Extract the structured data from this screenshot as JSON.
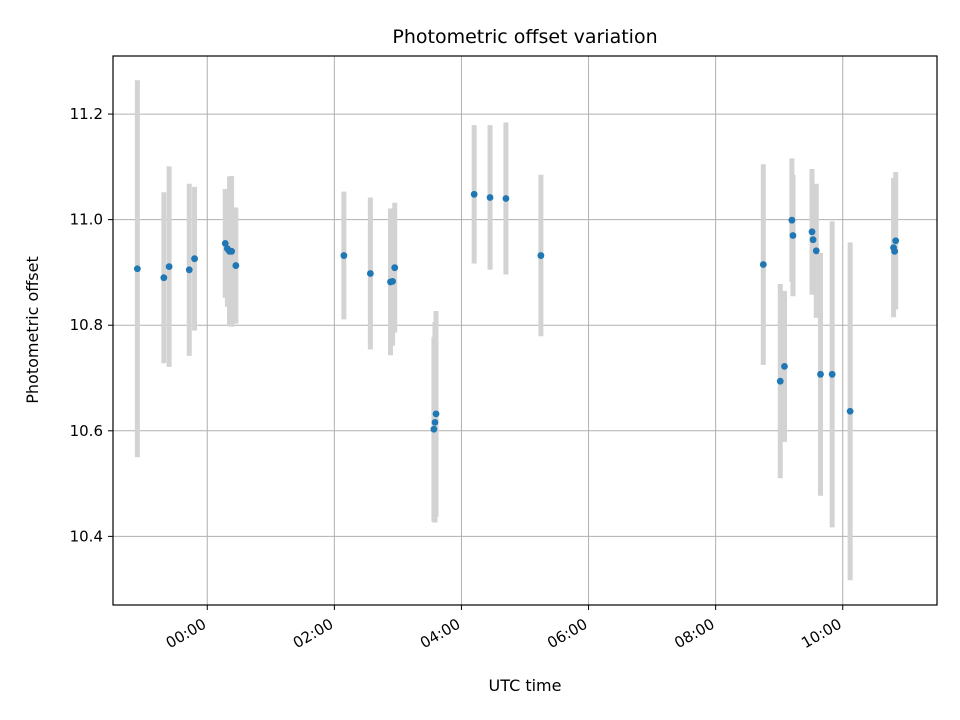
{
  "chart_data": {
    "type": "scatter",
    "title": "Photometric offset variation",
    "xlabel": "UTC time",
    "ylabel": "Photometric offset",
    "x_ticks": [
      "00:00",
      "02:00",
      "04:00",
      "06:00",
      "08:00",
      "10:00"
    ],
    "y_ticks": [
      "10.4",
      "10.6",
      "10.8",
      "11.0",
      "11.2"
    ],
    "xlim": [
      "-01:29",
      "11:29"
    ],
    "ylim": [
      10.27,
      11.31
    ],
    "grid": true,
    "legend": "none",
    "colors": {
      "point": "#1f77b4",
      "errorbar": "#d3d3d3",
      "grid": "#b0b0b0"
    },
    "series": [
      {
        "points": [
          {
            "x": "-01:06",
            "y": 10.907,
            "err": 0.357
          },
          {
            "x": "-00:41",
            "y": 10.89,
            "err": 0.162
          },
          {
            "x": "-00:36",
            "y": 10.911,
            "err": 0.19
          },
          {
            "x": "-00:17",
            "y": 10.905,
            "err": 0.163
          },
          {
            "x": "-00:12",
            "y": 10.926,
            "err": 0.136
          },
          {
            "x": "00:17",
            "y": 10.955,
            "err": 0.103
          },
          {
            "x": "00:19",
            "y": 10.945,
            "err": 0.11
          },
          {
            "x": "00:21",
            "y": 10.94,
            "err": 0.142
          },
          {
            "x": "00:23",
            "y": 10.94,
            "err": 0.143
          },
          {
            "x": "00:27",
            "y": 10.913,
            "err": 0.11
          },
          {
            "x": "02:09",
            "y": 10.932,
            "err": 0.121
          },
          {
            "x": "02:34",
            "y": 10.898,
            "err": 0.144
          },
          {
            "x": "02:53",
            "y": 10.882,
            "err": 0.139
          },
          {
            "x": "02:55",
            "y": 10.883,
            "err": 0.122
          },
          {
            "x": "02:57",
            "y": 10.909,
            "err": 0.123
          },
          {
            "x": "03:34",
            "y": 10.603,
            "err": 0.175
          },
          {
            "x": "03:35",
            "y": 10.616,
            "err": 0.19
          },
          {
            "x": "03:36",
            "y": 10.632,
            "err": 0.195
          },
          {
            "x": "04:12",
            "y": 11.048,
            "err": 0.131
          },
          {
            "x": "04:27",
            "y": 11.042,
            "err": 0.137
          },
          {
            "x": "04:42",
            "y": 11.04,
            "err": 0.144
          },
          {
            "x": "05:15",
            "y": 10.932,
            "err": 0.153
          },
          {
            "x": "08:45",
            "y": 10.915,
            "err": 0.19
          },
          {
            "x": "09:01",
            "y": 10.694,
            "err": 0.184
          },
          {
            "x": "09:05",
            "y": 10.722,
            "err": 0.143
          },
          {
            "x": "09:12",
            "y": 10.999,
            "err": 0.117
          },
          {
            "x": "09:13",
            "y": 10.97,
            "err": 0.115
          },
          {
            "x": "09:31",
            "y": 10.977,
            "err": 0.119
          },
          {
            "x": "09:32",
            "y": 10.962,
            "err": 0.104
          },
          {
            "x": "09:35",
            "y": 10.941,
            "err": 0.127
          },
          {
            "x": "09:39",
            "y": 10.707,
            "err": 0.23
          },
          {
            "x": "09:50",
            "y": 10.707,
            "err": 0.29
          },
          {
            "x": "10:07",
            "y": 10.637,
            "err": 0.32
          },
          {
            "x": "10:48",
            "y": 10.947,
            "err": 0.132
          },
          {
            "x": "10:49",
            "y": 10.94,
            "err": 0.11
          },
          {
            "x": "10:50",
            "y": 10.96,
            "err": 0.13
          }
        ]
      }
    ]
  }
}
